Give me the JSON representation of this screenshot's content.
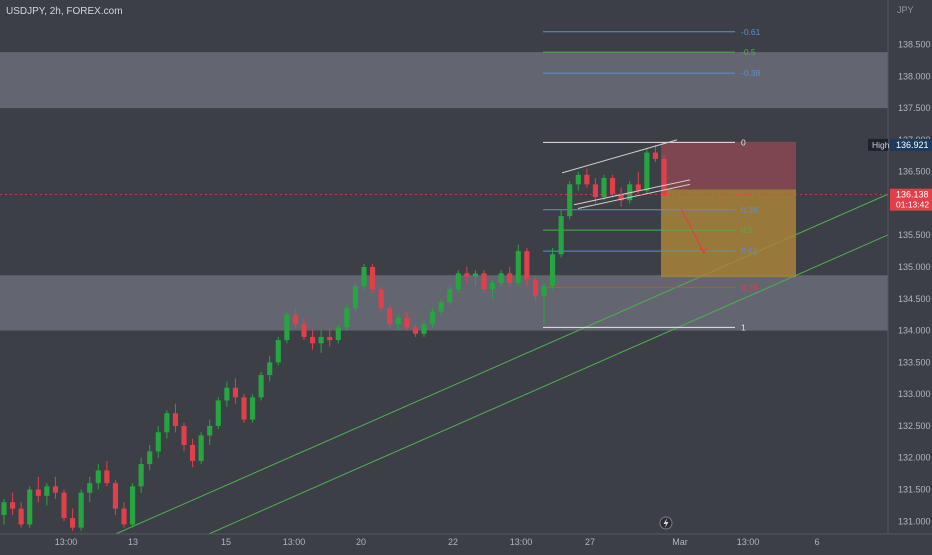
{
  "header": {
    "title": "USDJPY, 2h, FOREX.com",
    "currency": "JPY"
  },
  "colors": {
    "background": "#3d3f46",
    "zone": "#6a6d78",
    "bull": "#26a640",
    "bear": "#e0404a",
    "fib_blue": "#5b8fd6",
    "fib_green": "#4caf50",
    "fib_red": "#f23645",
    "fib_white": "#e6e6e6",
    "trend": "#4caf50",
    "stop_zone": "#8a4850",
    "target_zone": "#a8843a",
    "price_line": "#e0404a"
  },
  "chart_data": {
    "type": "candlestick",
    "y_range": [
      130.8,
      139.2
    ],
    "y_ticks": [
      "138.500",
      "138.000",
      "137.500",
      "137.000",
      "136.500",
      "136.000",
      "135.500",
      "135.000",
      "134.500",
      "134.000",
      "133.500",
      "133.000",
      "132.500",
      "132.000",
      "131.500",
      "131.000"
    ],
    "x_ticks": [
      "13:00",
      "13",
      "15",
      "13:00",
      "20",
      "22",
      "13:00",
      "27",
      "Mar",
      "13:00",
      "6"
    ],
    "high_label": {
      "label": "High",
      "value": "136.921"
    },
    "current_price": {
      "value": "136.138",
      "countdown": "01:13:42"
    },
    "zones": [
      {
        "from": 137.5,
        "to": 138.38
      },
      {
        "from": 134.0,
        "to": 134.87
      }
    ],
    "fib_levels": [
      {
        "label": "-0.61",
        "price": 138.7,
        "color": "blue"
      },
      {
        "label": "-0.5",
        "price": 138.38,
        "color": "green"
      },
      {
        "label": "-0.38",
        "price": 138.05,
        "color": "blue"
      },
      {
        "label": "0",
        "price": 136.96,
        "color": "white"
      },
      {
        "label": "0.38",
        "price": 135.9,
        "color": "blue"
      },
      {
        "label": "0.5",
        "price": 135.58,
        "color": "green"
      },
      {
        "label": "0.61",
        "price": 135.25,
        "color": "blue"
      },
      {
        "label": "0.78",
        "price": 134.68,
        "color": "red"
      },
      {
        "label": "1",
        "price": 134.05,
        "color": "white"
      }
    ],
    "position": {
      "entry": 136.22,
      "stop": 136.97,
      "target": 134.84
    },
    "trendlines": [
      {
        "from": {
          "x": 0.124,
          "p": 130.8
        },
        "to": {
          "x": 0.955,
          "p": 136.16
        }
      },
      {
        "from": {
          "x": 0.224,
          "p": 130.8
        },
        "to": {
          "x": 0.955,
          "p": 135.52
        }
      }
    ],
    "candles": [
      [
        131.1,
        131.35,
        130.95,
        131.3
      ],
      [
        131.3,
        131.45,
        131.1,
        131.2
      ],
      [
        131.2,
        131.3,
        130.9,
        130.95
      ],
      [
        130.95,
        131.55,
        130.9,
        131.5
      ],
      [
        131.5,
        131.7,
        131.3,
        131.4
      ],
      [
        131.4,
        131.6,
        131.25,
        131.55
      ],
      [
        131.55,
        131.7,
        131.35,
        131.45
      ],
      [
        131.45,
        131.5,
        131.0,
        131.05
      ],
      [
        131.05,
        131.2,
        130.85,
        130.9
      ],
      [
        130.9,
        131.5,
        130.85,
        131.45
      ],
      [
        131.45,
        131.7,
        131.3,
        131.6
      ],
      [
        131.6,
        131.9,
        131.5,
        131.8
      ],
      [
        131.8,
        131.95,
        131.55,
        131.6
      ],
      [
        131.6,
        131.65,
        131.1,
        131.2
      ],
      [
        131.2,
        131.3,
        130.9,
        130.95
      ],
      [
        130.95,
        131.6,
        130.9,
        131.55
      ],
      [
        131.55,
        132.0,
        131.45,
        131.9
      ],
      [
        131.9,
        132.2,
        131.8,
        132.1
      ],
      [
        132.1,
        132.5,
        132.0,
        132.4
      ],
      [
        132.4,
        132.75,
        132.3,
        132.7
      ],
      [
        132.7,
        132.85,
        132.4,
        132.5
      ],
      [
        132.5,
        132.55,
        132.1,
        132.2
      ],
      [
        132.2,
        132.3,
        131.85,
        131.95
      ],
      [
        131.95,
        132.4,
        131.9,
        132.35
      ],
      [
        132.35,
        132.6,
        132.2,
        132.5
      ],
      [
        132.5,
        132.95,
        132.45,
        132.9
      ],
      [
        132.9,
        133.2,
        132.8,
        133.1
      ],
      [
        133.1,
        133.25,
        132.85,
        132.95
      ],
      [
        132.95,
        133.0,
        132.55,
        132.6
      ],
      [
        132.6,
        133.0,
        132.55,
        132.95
      ],
      [
        132.95,
        133.35,
        132.9,
        133.3
      ],
      [
        133.3,
        133.6,
        133.2,
        133.5
      ],
      [
        133.5,
        133.9,
        133.45,
        133.85
      ],
      [
        133.85,
        134.3,
        133.8,
        134.25
      ],
      [
        134.25,
        134.35,
        134.05,
        134.1
      ],
      [
        134.1,
        134.2,
        133.85,
        133.9
      ],
      [
        133.9,
        134.0,
        133.7,
        133.8
      ],
      [
        133.8,
        134.0,
        133.65,
        133.9
      ],
      [
        133.9,
        134.05,
        133.75,
        133.85
      ],
      [
        133.85,
        134.1,
        133.8,
        134.05
      ],
      [
        134.05,
        134.4,
        134.0,
        134.35
      ],
      [
        134.35,
        134.75,
        134.3,
        134.7
      ],
      [
        134.7,
        135.05,
        134.65,
        135.0
      ],
      [
        135.0,
        135.05,
        134.6,
        134.65
      ],
      [
        134.65,
        134.7,
        134.3,
        134.35
      ],
      [
        134.35,
        134.4,
        134.05,
        134.1
      ],
      [
        134.1,
        134.25,
        134.0,
        134.2
      ],
      [
        134.2,
        134.3,
        134.0,
        134.05
      ],
      [
        134.05,
        134.1,
        133.9,
        133.95
      ],
      [
        133.95,
        134.15,
        133.9,
        134.1
      ],
      [
        134.1,
        134.35,
        134.05,
        134.3
      ],
      [
        134.3,
        134.5,
        134.25,
        134.45
      ],
      [
        134.45,
        134.7,
        134.4,
        134.65
      ],
      [
        134.65,
        134.95,
        134.6,
        134.9
      ],
      [
        134.9,
        135.0,
        134.75,
        134.85
      ],
      [
        134.85,
        134.95,
        134.7,
        134.9
      ],
      [
        134.9,
        134.95,
        134.6,
        134.65
      ],
      [
        134.65,
        134.8,
        134.5,
        134.75
      ],
      [
        134.75,
        134.95,
        134.7,
        134.9
      ],
      [
        134.9,
        135.0,
        134.7,
        134.75
      ],
      [
        134.75,
        135.35,
        134.7,
        135.25
      ],
      [
        135.25,
        135.3,
        134.7,
        134.8
      ],
      [
        134.8,
        134.85,
        134.45,
        134.55
      ],
      [
        134.55,
        134.75,
        134.1,
        134.7
      ],
      [
        134.7,
        135.3,
        134.65,
        135.2
      ],
      [
        135.2,
        135.9,
        135.15,
        135.8
      ],
      [
        135.8,
        136.35,
        135.75,
        136.3
      ],
      [
        136.3,
        136.5,
        136.2,
        136.45
      ],
      [
        136.45,
        136.55,
        136.25,
        136.3
      ],
      [
        136.3,
        136.4,
        136.0,
        136.1
      ],
      [
        136.1,
        136.45,
        136.05,
        136.4
      ],
      [
        136.4,
        136.45,
        136.1,
        136.15
      ],
      [
        136.15,
        136.25,
        135.95,
        136.05
      ],
      [
        136.05,
        136.35,
        136.0,
        136.3
      ],
      [
        136.3,
        136.5,
        136.15,
        136.2
      ],
      [
        136.2,
        136.85,
        136.15,
        136.8
      ],
      [
        136.8,
        136.92,
        136.65,
        136.7
      ],
      [
        136.7,
        136.75,
        136.1,
        136.14
      ]
    ]
  }
}
